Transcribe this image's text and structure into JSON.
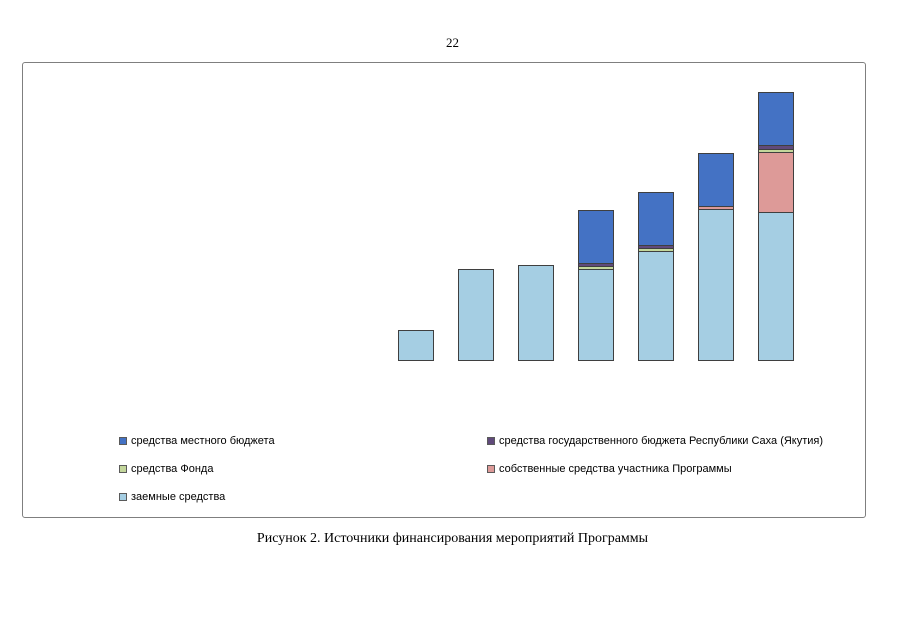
{
  "page": {
    "number": "22",
    "caption": "Рисунок 2. Источники финансирования мероприятий Программы"
  },
  "chart_data": {
    "type": "bar",
    "stacked": true,
    "title": "",
    "xlabel": "",
    "ylabel": "",
    "axes_visible": false,
    "grid": false,
    "legend_position": "bottom",
    "note": "no axis scale or category labels are shown; values estimated in relative units from bar heights",
    "categories": [
      "",
      "",
      "",
      "",
      "",
      "",
      ""
    ],
    "ylim": [
      0,
      280
    ],
    "series": [
      {
        "name": "заемные средства",
        "color": "#A5CEE3",
        "values": [
          31,
          92,
          96,
          92,
          110,
          152,
          149
        ]
      },
      {
        "name": "собственные средства участника Программы",
        "color": "#DD9A98",
        "values": [
          0,
          0,
          0,
          0,
          0,
          3,
          60
        ]
      },
      {
        "name": "средства Фонда",
        "color": "#C3D69B",
        "values": [
          0,
          0,
          0,
          3,
          3,
          0,
          3
        ]
      },
      {
        "name": "средства государственного бюджета Республики Саха (Якутия)",
        "color": "#604A7B",
        "values": [
          0,
          0,
          0,
          3,
          3,
          0,
          4
        ]
      },
      {
        "name": "средства местного бюджета",
        "color": "#4472C4",
        "values": [
          0,
          0,
          0,
          53,
          53,
          53,
          53
        ]
      }
    ]
  },
  "legend": {
    "left": [
      {
        "label": "средства местного бюджета",
        "color": "#4472C4"
      },
      {
        "label": "средства Фонда",
        "color": "#C3D69B"
      },
      {
        "label": "заемные средства",
        "color": "#A5CEE3"
      }
    ],
    "right": [
      {
        "label": "средства государственного бюджета Республики Саха (Якутия)",
        "color": "#604A7B"
      },
      {
        "label": "собственные средства участника Программы",
        "color": "#DD9A98"
      }
    ]
  }
}
